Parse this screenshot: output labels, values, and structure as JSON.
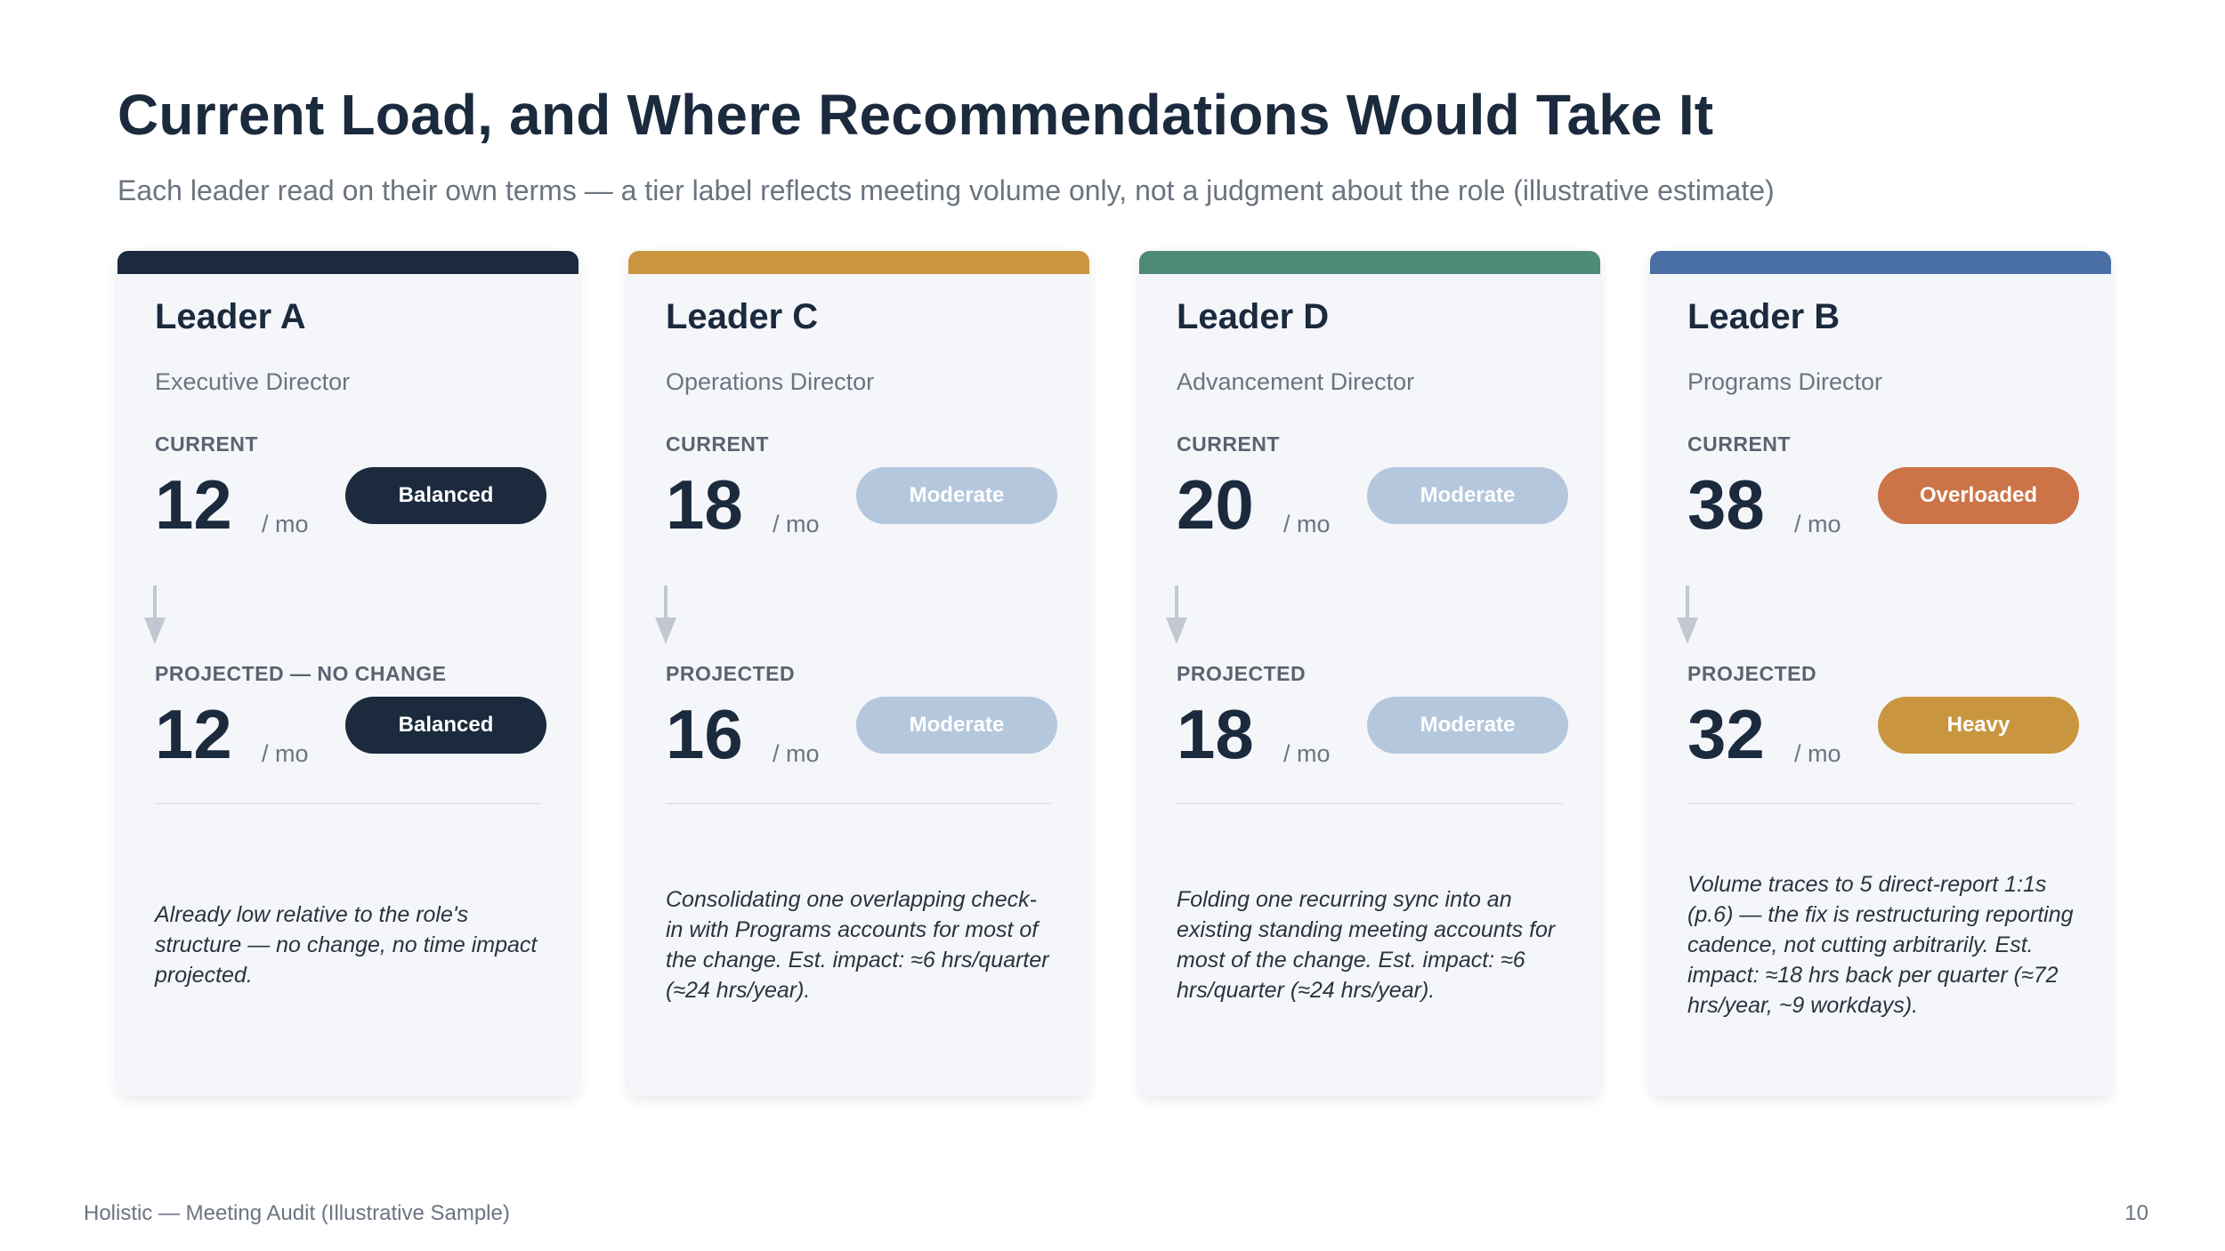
{
  "header": {
    "title": "Current Load, and Where Recommendations Would Take It",
    "subtitle": "Each leader read on their own terms — a tier label reflects meeting volume only, not a judgment about the role (illustrative estimate)"
  },
  "unit_label": "/ mo",
  "cards": [
    {
      "name": "Leader A",
      "role": "Executive Director",
      "accent_color": "#1b2a3d",
      "current_label": "CURRENT",
      "current_value": "12",
      "current_tier": "Balanced",
      "current_tier_color": "#1b2a3d",
      "projected_label": "PROJECTED — NO CHANGE",
      "projected_value": "12",
      "projected_tier": "Balanced",
      "projected_tier_color": "#1b2a3d",
      "note": "Already low relative to the role's structure — no change, no time impact projected."
    },
    {
      "name": "Leader C",
      "role": "Operations Director",
      "accent_color": "#c9963f",
      "current_label": "CURRENT",
      "current_value": "18",
      "current_tier": "Moderate",
      "current_tier_color": "#b4c7dd",
      "projected_label": "PROJECTED",
      "projected_value": "16",
      "projected_tier": "Moderate",
      "projected_tier_color": "#b4c7dd",
      "note": "Consolidating one overlapping check-in with Programs accounts for most of the change. Est. impact: ≈6 hrs/quarter (≈24 hrs/year)."
    },
    {
      "name": "Leader D",
      "role": "Advancement Director",
      "accent_color": "#4e8a78",
      "current_label": "CURRENT",
      "current_value": "20",
      "current_tier": "Moderate",
      "current_tier_color": "#b4c7dd",
      "projected_label": "PROJECTED",
      "projected_value": "18",
      "projected_tier": "Moderate",
      "projected_tier_color": "#b4c7dd",
      "note": "Folding one recurring sync into an existing standing meeting accounts for most of the change. Est. impact: ≈6 hrs/quarter (≈24 hrs/year)."
    },
    {
      "name": "Leader B",
      "role": "Programs Director",
      "accent_color": "#4a6fa5",
      "current_label": "CURRENT",
      "current_value": "38",
      "current_tier": "Overloaded",
      "current_tier_color": "#cc7447",
      "projected_label": "PROJECTED",
      "projected_value": "32",
      "projected_tier": "Heavy",
      "projected_tier_color": "#c9963f",
      "note": "Volume traces to 5 direct-report 1:1s (p.6) — the fix is restructuring reporting cadence, not cutting arbitrarily. Est. impact: ≈18 hrs back per quarter (≈72 hrs/year, ~9 workdays)."
    }
  ],
  "footer": {
    "left": "Holistic — Meeting Audit (Illustrative Sample)",
    "page_number": "10"
  }
}
